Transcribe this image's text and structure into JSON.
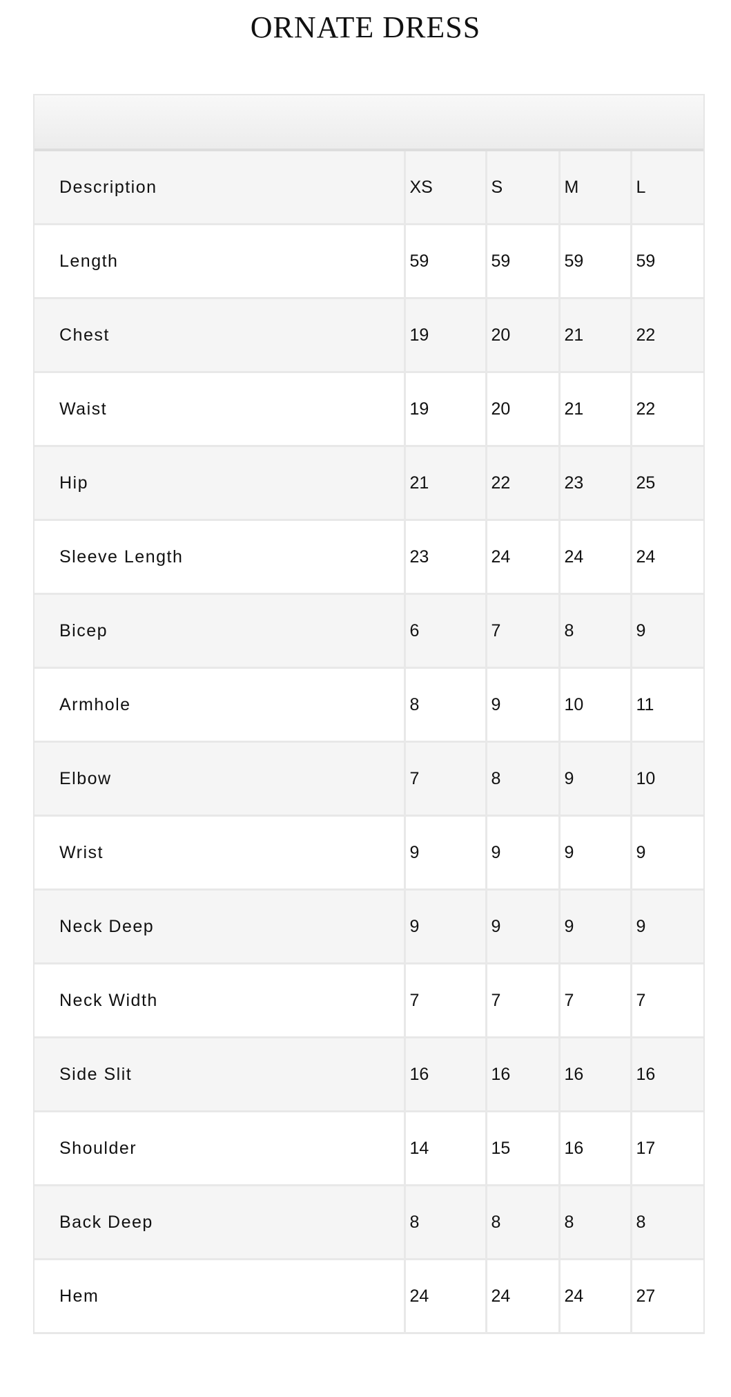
{
  "title": "ORNATE DRESS",
  "table": {
    "headers": [
      "Description",
      "XS",
      "S",
      "M",
      "L"
    ],
    "rows": [
      [
        "Length",
        "59",
        "59",
        "59",
        "59"
      ],
      [
        "Chest",
        "19",
        "20",
        "21",
        "22"
      ],
      [
        "Waist",
        "19",
        "20",
        "21",
        "22"
      ],
      [
        "Hip",
        "21",
        "22",
        "23",
        "25"
      ],
      [
        "Sleeve Length",
        "23",
        "24",
        "24",
        "24"
      ],
      [
        "Bicep",
        "6",
        "7",
        "8",
        "9"
      ],
      [
        "Armhole",
        "8",
        "9",
        "10",
        "11"
      ],
      [
        "Elbow",
        "7",
        "8",
        "9",
        "10"
      ],
      [
        "Wrist",
        "9",
        "9",
        "9",
        "9"
      ],
      [
        "Neck Deep",
        "9",
        "9",
        "9",
        "9"
      ],
      [
        "Neck Width",
        "7",
        "7",
        "7",
        "7"
      ],
      [
        "Side Slit",
        "16",
        "16",
        "16",
        "16"
      ],
      [
        "Shoulder",
        "14",
        "15",
        "16",
        "17"
      ],
      [
        "Back Deep",
        "8",
        "8",
        "8",
        "8"
      ],
      [
        "Hem",
        "24",
        "24",
        "24",
        "27"
      ]
    ]
  }
}
